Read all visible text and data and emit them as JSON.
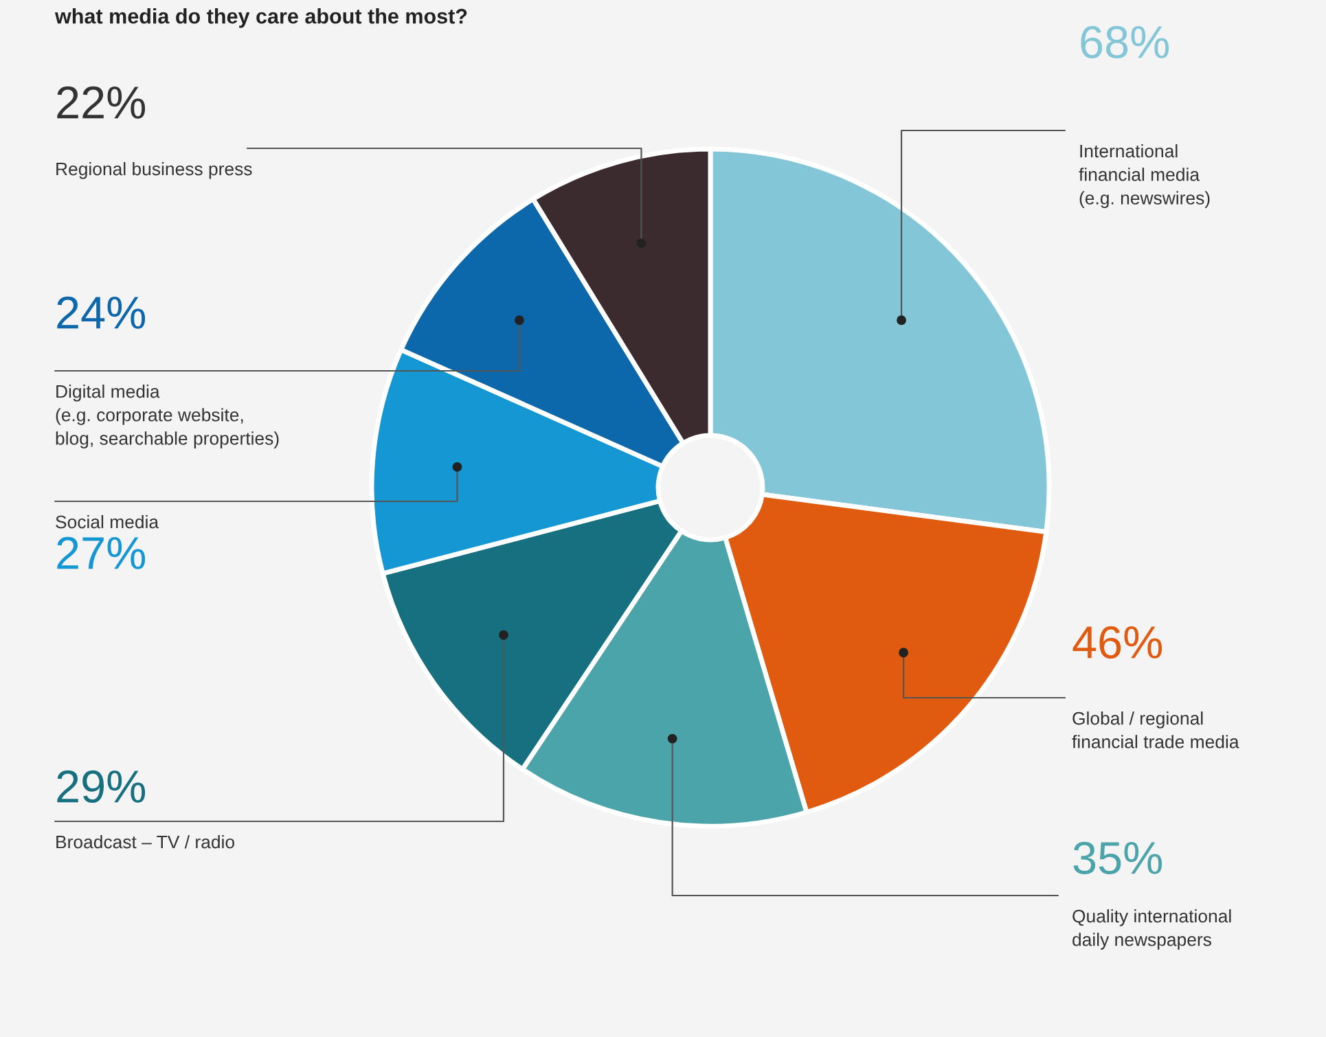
{
  "chart_data": {
    "type": "donut",
    "title": "what media do they care about the most?",
    "categories": [
      "International\nfinancial media\n(e.g. newswires)",
      "Global / regional\nfinancial trade media",
      "Quality international\ndaily newspapers",
      "Broadcast – TV / radio",
      "Social media",
      "Digital media\n(e.g. corporate website,\nblog, searchable properties)",
      "Regional business press"
    ],
    "values": [
      68,
      46,
      35,
      29,
      27,
      24,
      22
    ],
    "value_labels": [
      "68%",
      "46%",
      "35%",
      "29%",
      "27%",
      "24%",
      "22%"
    ],
    "colors": [
      "#82c6d8",
      "#e05a10",
      "#4ba4a9",
      "#16707f",
      "#1597d3",
      "#0d67ab",
      "#3b2a2e"
    ]
  }
}
